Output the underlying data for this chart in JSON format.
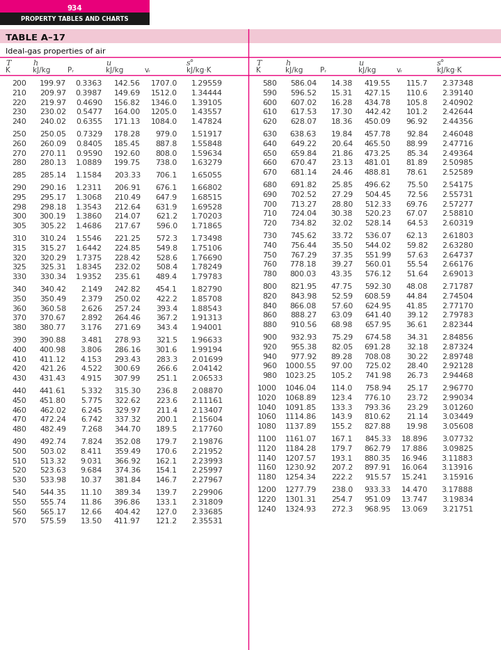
{
  "page_number": "934",
  "header_title": "PROPERTY TABLES AND CHARTS",
  "table_title": "TABLE A–17",
  "subtitle": "Ideal-gas properties of air",
  "magenta_color": "#E8007A",
  "black_color": "#1a1a1a",
  "pink_title_bg": "#F2C8D5",
  "left_data": [
    [
      200,
      199.97,
      "0.3363",
      142.56,
      "1707.0",
      "1.29559"
    ],
    [
      210,
      209.97,
      "0.3987",
      149.69,
      "1512.0",
      "1.34444"
    ],
    [
      220,
      219.97,
      "0.4690",
      156.82,
      "1346.0",
      "1.39105"
    ],
    [
      230,
      230.02,
      "0.5477",
      164.0,
      "1205.0",
      "1.43557"
    ],
    [
      240,
      240.02,
      "0.6355",
      171.13,
      "1084.0",
      "1.47824"
    ],
    [
      250,
      250.05,
      "0.7329",
      178.28,
      "979.0",
      "1.51917"
    ],
    [
      260,
      260.09,
      "0.8405",
      185.45,
      "887.8",
      "1.55848"
    ],
    [
      270,
      270.11,
      "0.9590",
      192.6,
      "808.0",
      "1.59634"
    ],
    [
      280,
      280.13,
      "1.0889",
      199.75,
      "738.0",
      "1.63279"
    ],
    [
      285,
      285.14,
      "1.1584",
      203.33,
      "706.1",
      "1.65055"
    ],
    [
      290,
      290.16,
      "1.2311",
      206.91,
      "676.1",
      "1.66802"
    ],
    [
      295,
      295.17,
      "1.3068",
      210.49,
      "647.9",
      "1.68515"
    ],
    [
      298,
      298.18,
      "1.3543",
      212.64,
      "631.9",
      "1.69528"
    ],
    [
      300,
      300.19,
      "1.3860",
      214.07,
      "621.2",
      "1.70203"
    ],
    [
      305,
      305.22,
      "1.4686",
      217.67,
      "596.0",
      "1.71865"
    ],
    [
      310,
      310.24,
      "1.5546",
      221.25,
      "572.3",
      "1.73498"
    ],
    [
      315,
      315.27,
      "1.6442",
      224.85,
      "549.8",
      "1.75106"
    ],
    [
      320,
      320.29,
      "1.7375",
      228.42,
      "528.6",
      "1.76690"
    ],
    [
      325,
      325.31,
      "1.8345",
      232.02,
      "508.4",
      "1.78249"
    ],
    [
      330,
      330.34,
      "1.9352",
      235.61,
      "489.4",
      "1.79783"
    ],
    [
      340,
      340.42,
      "2.149",
      242.82,
      "454.1",
      "1.82790"
    ],
    [
      350,
      350.49,
      "2.379",
      250.02,
      "422.2",
      "1.85708"
    ],
    [
      360,
      360.58,
      "2.626",
      257.24,
      "393.4",
      "1.88543"
    ],
    [
      370,
      370.67,
      "2.892",
      264.46,
      "367.2",
      "1.91313"
    ],
    [
      380,
      380.77,
      "3.176",
      271.69,
      "343.4",
      "1.94001"
    ],
    [
      390,
      390.88,
      "3.481",
      278.93,
      "321.5",
      "1.96633"
    ],
    [
      400,
      400.98,
      "3.806",
      286.16,
      "301.6",
      "1.99194"
    ],
    [
      410,
      411.12,
      "4.153",
      293.43,
      "283.3",
      "2.01699"
    ],
    [
      420,
      421.26,
      "4.522",
      300.69,
      "266.6",
      "2.04142"
    ],
    [
      430,
      431.43,
      "4.915",
      307.99,
      "251.1",
      "2.06533"
    ],
    [
      440,
      441.61,
      "5.332",
      315.3,
      "236.8",
      "2.08870"
    ],
    [
      450,
      451.8,
      "5.775",
      322.62,
      "223.6",
      "2.11161"
    ],
    [
      460,
      462.02,
      "6.245",
      329.97,
      "211.4",
      "2.13407"
    ],
    [
      470,
      472.24,
      "6.742",
      337.32,
      "200.1",
      "2.15604"
    ],
    [
      480,
      482.49,
      "7.268",
      344.7,
      "189.5",
      "2.17760"
    ],
    [
      490,
      492.74,
      "7.824",
      352.08,
      "179.7",
      "2.19876"
    ],
    [
      500,
      503.02,
      "8.411",
      359.49,
      "170.6",
      "2.21952"
    ],
    [
      510,
      513.32,
      "9.031",
      366.92,
      "162.1",
      "2.23993"
    ],
    [
      520,
      523.63,
      "9.684",
      374.36,
      "154.1",
      "2.25997"
    ],
    [
      530,
      533.98,
      "10.37",
      381.84,
      "146.7",
      "2.27967"
    ],
    [
      540,
      544.35,
      "11.10",
      389.34,
      "139.7",
      "2.29906"
    ],
    [
      550,
      555.74,
      "11.86",
      396.86,
      "133.1",
      "2.31809"
    ],
    [
      560,
      565.17,
      "12.66",
      404.42,
      "127.0",
      "2.33685"
    ],
    [
      570,
      575.59,
      "13.50",
      411.97,
      "121.2",
      "2.35531"
    ]
  ],
  "right_data": [
    [
      580,
      586.04,
      "14.38",
      419.55,
      "115.7",
      "2.37348"
    ],
    [
      590,
      596.52,
      "15.31",
      427.15,
      "110.6",
      "2.39140"
    ],
    [
      600,
      607.02,
      "16.28",
      434.78,
      "105.8",
      "2.40902"
    ],
    [
      610,
      617.53,
      "17.30",
      442.42,
      "101.2",
      "2.42644"
    ],
    [
      620,
      628.07,
      "18.36",
      450.09,
      "96.92",
      "2.44356"
    ],
    [
      630,
      638.63,
      "19.84",
      457.78,
      "92.84",
      "2.46048"
    ],
    [
      640,
      649.22,
      "20.64",
      465.5,
      "88.99",
      "2.47716"
    ],
    [
      650,
      659.84,
      "21.86",
      473.25,
      "85.34",
      "2.49364"
    ],
    [
      660,
      670.47,
      "23.13",
      481.01,
      "81.89",
      "2.50985"
    ],
    [
      670,
      681.14,
      "24.46",
      488.81,
      "78.61",
      "2.52589"
    ],
    [
      680,
      691.82,
      "25.85",
      496.62,
      "75.50",
      "2.54175"
    ],
    [
      690,
      702.52,
      "27.29",
      504.45,
      "72.56",
      "2.55731"
    ],
    [
      700,
      713.27,
      "28.80",
      512.33,
      "69.76",
      "2.57277"
    ],
    [
      710,
      724.04,
      "30.38",
      520.23,
      "67.07",
      "2.58810"
    ],
    [
      720,
      734.82,
      "32.02",
      528.14,
      "64.53",
      "2.60319"
    ],
    [
      730,
      745.62,
      "33.72",
      536.07,
      "62.13",
      "2.61803"
    ],
    [
      740,
      756.44,
      "35.50",
      544.02,
      "59.82",
      "2.63280"
    ],
    [
      750,
      767.29,
      "37.35",
      551.99,
      "57.63",
      "2.64737"
    ],
    [
      760,
      778.18,
      "39.27",
      560.01,
      "55.54",
      "2.66176"
    ],
    [
      780,
      800.03,
      "43.35",
      576.12,
      "51.64",
      "2.69013"
    ],
    [
      800,
      821.95,
      "47.75",
      592.3,
      "48.08",
      "2.71787"
    ],
    [
      820,
      843.98,
      "52.59",
      608.59,
      "44.84",
      "2.74504"
    ],
    [
      840,
      866.08,
      "57.60",
      624.95,
      "41.85",
      "2.77170"
    ],
    [
      860,
      888.27,
      "63.09",
      641.4,
      "39.12",
      "2.79783"
    ],
    [
      880,
      910.56,
      "68.98",
      657.95,
      "36.61",
      "2.82344"
    ],
    [
      900,
      932.93,
      "75.29",
      674.58,
      "34.31",
      "2.84856"
    ],
    [
      920,
      955.38,
      "82.05",
      691.28,
      "32.18",
      "2.87324"
    ],
    [
      940,
      977.92,
      "89.28",
      708.08,
      "30.22",
      "2.89748"
    ],
    [
      960,
      1000.55,
      "97.00",
      725.02,
      "28.40",
      "2.92128"
    ],
    [
      980,
      1023.25,
      "105.2",
      741.98,
      "26.73",
      "2.94468"
    ],
    [
      1000,
      1046.04,
      "114.0",
      758.94,
      "25.17",
      "2.96770"
    ],
    [
      1020,
      1068.89,
      "123.4",
      776.1,
      "23.72",
      "2.99034"
    ],
    [
      1040,
      1091.85,
      "133.3",
      793.36,
      "23.29",
      "3.01260"
    ],
    [
      1060,
      1114.86,
      "143.9",
      810.62,
      "21.14",
      "3.03449"
    ],
    [
      1080,
      1137.89,
      "155.2",
      827.88,
      "19.98",
      "3.05608"
    ],
    [
      1100,
      1161.07,
      "167.1",
      845.33,
      "18.896",
      "3.07732"
    ],
    [
      1120,
      1184.28,
      "179.7",
      862.79,
      "17.886",
      "3.09825"
    ],
    [
      1140,
      1207.57,
      "193.1",
      880.35,
      "16.946",
      "3.11883"
    ],
    [
      1160,
      1230.92,
      "207.2",
      897.91,
      "16.064",
      "3.13916"
    ],
    [
      1180,
      1254.34,
      "222.2",
      915.57,
      "15.241",
      "3.15916"
    ],
    [
      1200,
      1277.79,
      "238.0",
      933.33,
      "14.470",
      "3.17888"
    ],
    [
      1220,
      1301.31,
      "254.7",
      951.09,
      "13.747",
      "3.19834"
    ],
    [
      1240,
      1324.93,
      "272.3",
      968.95,
      "13.069",
      "3.21751"
    ]
  ],
  "group_breaks_left": [
    5,
    9,
    10,
    15,
    20,
    25,
    30,
    35,
    40
  ],
  "group_breaks_right": [
    5,
    10,
    15,
    20,
    25,
    30,
    35,
    40
  ]
}
